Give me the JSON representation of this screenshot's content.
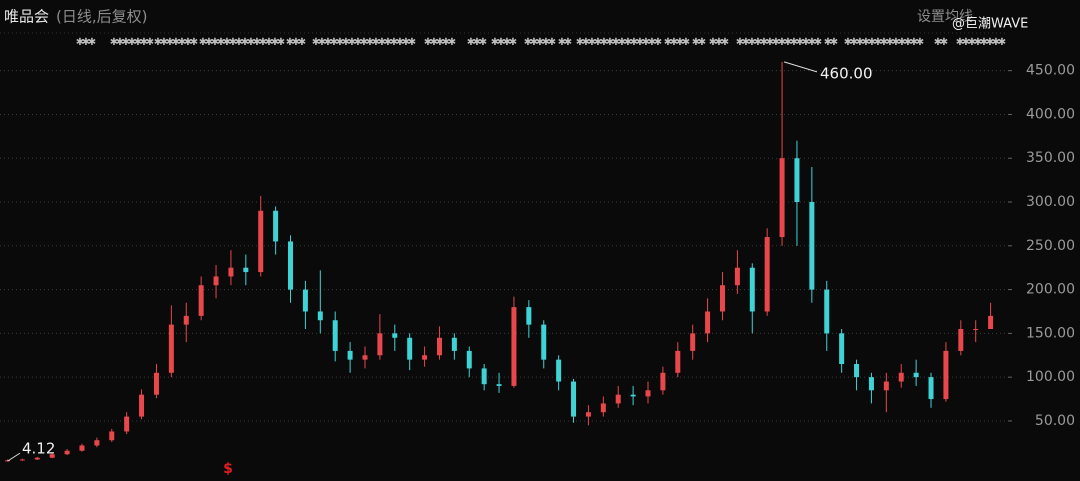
{
  "header": {
    "title": "唯品会",
    "subtitle": "(日线,后复权)",
    "setting": "设置均线",
    "watermark": "@巨潮WAVE"
  },
  "chart_data": {
    "type": "candlestick",
    "open": [
      4.5,
      5,
      6,
      8,
      12,
      16,
      22,
      28,
      38,
      55,
      80,
      105,
      160,
      170,
      205,
      215,
      225,
      220,
      290,
      255,
      200,
      175,
      165,
      130,
      120,
      125,
      150,
      145,
      120,
      125,
      145,
      130,
      110,
      92,
      90,
      180,
      160,
      120,
      95,
      55,
      60,
      70,
      80,
      78,
      85,
      105,
      130,
      150,
      175,
      205,
      225,
      175,
      260,
      350,
      300,
      200,
      150,
      115,
      100,
      85,
      95,
      105,
      100,
      75,
      130,
      155,
      155
    ],
    "close": [
      5,
      6,
      8,
      12,
      16,
      22,
      28,
      38,
      55,
      80,
      105,
      160,
      170,
      205,
      215,
      225,
      220,
      290,
      255,
      200,
      175,
      165,
      130,
      120,
      125,
      150,
      145,
      120,
      125,
      145,
      130,
      110,
      92,
      90,
      180,
      160,
      120,
      95,
      55,
      60,
      70,
      80,
      78,
      85,
      105,
      130,
      150,
      175,
      205,
      225,
      175,
      260,
      350,
      300,
      200,
      150,
      115,
      100,
      85,
      95,
      105,
      100,
      75,
      130,
      155,
      155,
      170
    ],
    "high": [
      6,
      7,
      9,
      13,
      18,
      24,
      31,
      41,
      60,
      86,
      115,
      182,
      185,
      215,
      228,
      245,
      240,
      307,
      295,
      262,
      210,
      222,
      175,
      140,
      135,
      172,
      160,
      150,
      135,
      158,
      150,
      135,
      115,
      105,
      192,
      188,
      165,
      125,
      98,
      68,
      78,
      90,
      90,
      95,
      112,
      140,
      160,
      190,
      220,
      245,
      230,
      270,
      460,
      370,
      340,
      210,
      155,
      120,
      105,
      105,
      115,
      120,
      105,
      140,
      165,
      165,
      185
    ],
    "low": [
      4.12,
      4.6,
      5.5,
      7.5,
      11,
      15,
      20,
      26,
      35,
      52,
      76,
      100,
      140,
      165,
      190,
      205,
      205,
      215,
      240,
      185,
      155,
      150,
      118,
      105,
      110,
      120,
      130,
      108,
      112,
      120,
      120,
      100,
      85,
      82,
      88,
      145,
      110,
      85,
      48,
      45,
      55,
      65,
      68,
      70,
      80,
      100,
      120,
      140,
      165,
      195,
      150,
      170,
      250,
      250,
      185,
      130,
      105,
      85,
      70,
      60,
      88,
      90,
      65,
      72,
      125,
      140,
      158
    ],
    "up_color": "#e8474c",
    "down_color": "#3fd3d6",
    "ylim": [
      -6,
      493
    ],
    "yticks": [
      {
        "value": 50,
        "label": "50.00"
      },
      {
        "value": 100,
        "label": "100.00"
      },
      {
        "value": 150,
        "label": "150.00"
      },
      {
        "value": 200,
        "label": "200.00"
      },
      {
        "value": 250,
        "label": "250.00"
      },
      {
        "value": 300,
        "label": "300.00"
      },
      {
        "value": 350,
        "label": "350.00"
      },
      {
        "value": 400,
        "label": "400.00"
      },
      {
        "value": 450,
        "label": "450.00"
      }
    ],
    "grid": true,
    "annotations": [
      {
        "text": "460.00"
      },
      {
        "text": "4.12"
      },
      {
        "text": "$"
      }
    ]
  }
}
